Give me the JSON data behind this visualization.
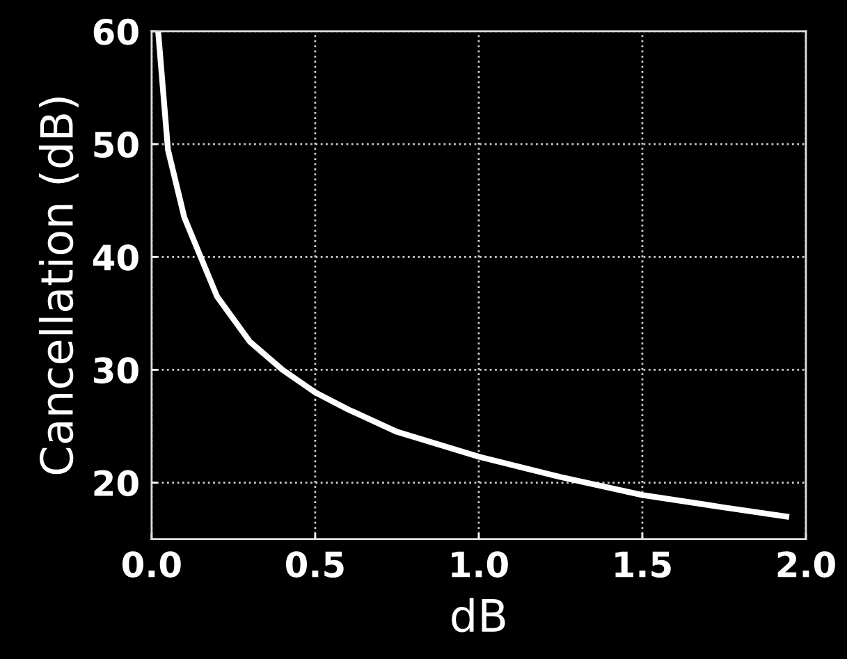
{
  "chart_data": {
    "type": "line",
    "xlabel": "dB",
    "ylabel": "Cancellation (dB)",
    "x": [
      0.02,
      0.05,
      0.1,
      0.15,
      0.2,
      0.3,
      0.4,
      0.5,
      0.6,
      0.75,
      1.0,
      1.25,
      1.5,
      1.75,
      1.94
    ],
    "series": [
      {
        "color": "#ffffff",
        "values": [
          60,
          49.5,
          43.5,
          40,
          36.5,
          32.5,
          30,
          28,
          26.5,
          24.5,
          22.3,
          20.5,
          18.9,
          17.8,
          17.0
        ]
      }
    ],
    "xlim": [
      0,
      2
    ],
    "ylim": [
      15,
      60
    ],
    "xticks": [
      {
        "value": 0,
        "label": "0.0"
      },
      {
        "value": 0.5,
        "label": "0.5"
      },
      {
        "value": 1,
        "label": "1.0"
      },
      {
        "value": 1.5,
        "label": "1.5"
      },
      {
        "value": 2,
        "label": "2.0"
      }
    ],
    "yticks": [
      20,
      30,
      40,
      50,
      60
    ],
    "grid": true,
    "marker": "none",
    "line_style": "solid",
    "legend": false
  }
}
